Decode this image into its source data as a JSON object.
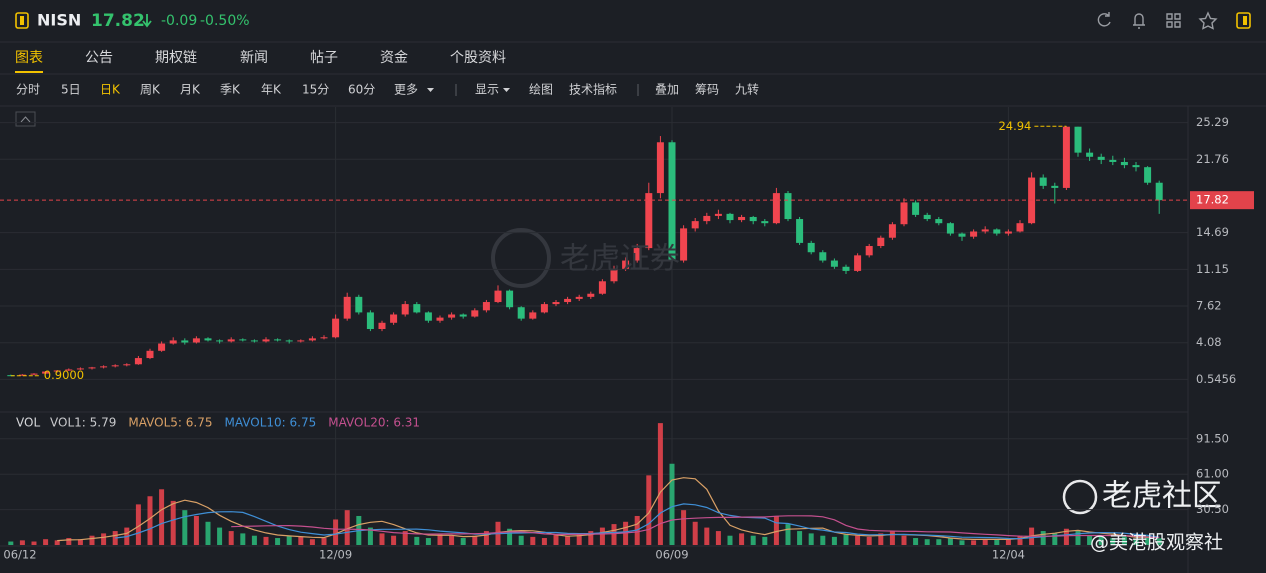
{
  "header": {
    "symbol": "NISN",
    "price": "17.82",
    "change": "-0.09",
    "change_pct": "-0.50%"
  },
  "tabs": [
    "图表",
    "公告",
    "期权链",
    "新闻",
    "帖子",
    "资金",
    "个股资料"
  ],
  "active_tab": 0,
  "periods": [
    "分时",
    "5日",
    "日K",
    "周K",
    "月K",
    "季K",
    "年K",
    "15分",
    "60分",
    "更多"
  ],
  "active_period": 2,
  "tools": [
    "显示",
    "绘图",
    "技术指标"
  ],
  "overlays": [
    "叠加",
    "筹码",
    "九转"
  ],
  "watermarks": [
    "老虎证券",
    "老虎社区",
    "@美港股观察社"
  ],
  "chart_data": [
    {
      "type": "candlestick",
      "up_color": "#f0454f",
      "down_color": "#2bbd7c",
      "xlim": [
        -0.5,
        99.5
      ],
      "xticks": [
        {
          "value": 0,
          "label": "06/12"
        },
        {
          "value": 28,
          "label": "12/09"
        },
        {
          "value": 57,
          "label": "06/09"
        },
        {
          "value": 86,
          "label": "12/04"
        }
      ],
      "ylim": [
        -2.6,
        26.8
      ],
      "yticks": [
        0.5456,
        4.08,
        7.62,
        11.15,
        14.69,
        21.76,
        25.29
      ],
      "grid": true,
      "last_price": 17.82,
      "high_label": 24.94,
      "low_label": {
        "value": 0.9,
        "label": "0.9000"
      },
      "candles": [
        [
          0.95,
          1.0,
          0.9,
          0.9
        ],
        [
          0.9,
          1.05,
          0.9,
          1.0
        ],
        [
          1.0,
          1.15,
          0.95,
          1.1
        ],
        [
          1.1,
          1.35,
          1.05,
          1.3
        ],
        [
          1.3,
          1.45,
          1.2,
          1.4
        ],
        [
          1.4,
          1.6,
          1.35,
          1.5
        ],
        [
          1.5,
          1.7,
          1.45,
          1.6
        ],
        [
          1.6,
          1.75,
          1.5,
          1.7
        ],
        [
          1.7,
          1.9,
          1.6,
          1.8
        ],
        [
          1.8,
          2.0,
          1.7,
          1.9
        ],
        [
          1.9,
          2.1,
          1.8,
          2.0
        ],
        [
          2.0,
          2.8,
          1.95,
          2.6
        ],
        [
          2.6,
          3.5,
          2.5,
          3.3
        ],
        [
          3.3,
          4.2,
          3.2,
          4.0
        ],
        [
          4.0,
          4.6,
          3.9,
          4.3
        ],
        [
          4.3,
          4.5,
          3.9,
          4.1
        ],
        [
          4.1,
          4.7,
          4.0,
          4.5
        ],
        [
          4.5,
          4.6,
          4.2,
          4.3
        ],
        [
          4.3,
          4.4,
          4.0,
          4.2
        ],
        [
          4.2,
          4.6,
          4.1,
          4.4
        ],
        [
          4.4,
          4.5,
          4.2,
          4.3
        ],
        [
          4.3,
          4.4,
          4.1,
          4.2
        ],
        [
          4.2,
          4.6,
          4.1,
          4.4
        ],
        [
          4.4,
          4.5,
          4.2,
          4.3
        ],
        [
          4.3,
          4.4,
          4.0,
          4.2
        ],
        [
          4.2,
          4.4,
          4.1,
          4.3
        ],
        [
          4.3,
          4.7,
          4.2,
          4.5
        ],
        [
          4.5,
          4.8,
          4.4,
          4.6
        ],
        [
          4.6,
          6.8,
          4.5,
          6.4
        ],
        [
          6.4,
          8.9,
          6.2,
          8.5
        ],
        [
          8.5,
          8.7,
          6.8,
          7.0
        ],
        [
          7.0,
          7.2,
          5.2,
          5.4
        ],
        [
          5.4,
          6.2,
          5.2,
          6.0
        ],
        [
          6.0,
          7.0,
          5.8,
          6.8
        ],
        [
          6.8,
          8.1,
          6.6,
          7.8
        ],
        [
          7.8,
          8.0,
          6.9,
          7.0
        ],
        [
          7.0,
          7.1,
          6.0,
          6.2
        ],
        [
          6.2,
          6.7,
          6.0,
          6.5
        ],
        [
          6.5,
          7.0,
          6.3,
          6.8
        ],
        [
          6.8,
          6.9,
          6.4,
          6.6
        ],
        [
          6.6,
          7.4,
          6.5,
          7.2
        ],
        [
          7.2,
          8.2,
          7.0,
          8.0
        ],
        [
          8.0,
          9.6,
          7.9,
          9.1
        ],
        [
          9.1,
          9.2,
          7.3,
          7.5
        ],
        [
          7.5,
          7.6,
          6.2,
          6.4
        ],
        [
          6.4,
          7.2,
          6.3,
          7.0
        ],
        [
          7.0,
          8.0,
          6.9,
          7.8
        ],
        [
          7.8,
          8.2,
          7.6,
          8.0
        ],
        [
          8.0,
          8.5,
          7.8,
          8.3
        ],
        [
          8.3,
          8.7,
          8.1,
          8.5
        ],
        [
          8.5,
          9.0,
          8.3,
          8.8
        ],
        [
          8.8,
          10.2,
          8.7,
          10.0
        ],
        [
          10.0,
          11.5,
          9.8,
          11.2
        ],
        [
          11.2,
          12.3,
          11.0,
          12.0
        ],
        [
          12.0,
          13.6,
          11.8,
          13.2
        ],
        [
          13.2,
          19.5,
          13.0,
          18.5
        ],
        [
          18.5,
          24.0,
          18.0,
          23.4
        ],
        [
          23.4,
          23.6,
          11.5,
          12.0
        ],
        [
          12.0,
          15.4,
          11.8,
          15.1
        ],
        [
          15.1,
          16.1,
          14.8,
          15.8
        ],
        [
          15.8,
          16.6,
          15.5,
          16.3
        ],
        [
          16.3,
          16.9,
          16.0,
          16.5
        ],
        [
          16.5,
          16.6,
          15.6,
          15.9
        ],
        [
          15.9,
          16.4,
          15.7,
          16.2
        ],
        [
          16.2,
          16.3,
          15.5,
          15.8
        ],
        [
          15.8,
          16.0,
          15.3,
          15.6
        ],
        [
          15.6,
          19.0,
          15.5,
          18.5
        ],
        [
          18.5,
          18.7,
          15.8,
          16.0
        ],
        [
          16.0,
          16.2,
          13.5,
          13.7
        ],
        [
          13.7,
          13.9,
          12.6,
          12.8
        ],
        [
          12.8,
          13.0,
          11.8,
          12.0
        ],
        [
          12.0,
          12.2,
          11.2,
          11.4
        ],
        [
          11.4,
          11.6,
          10.7,
          11.0
        ],
        [
          11.0,
          12.7,
          10.9,
          12.5
        ],
        [
          12.5,
          13.6,
          12.3,
          13.4
        ],
        [
          13.4,
          14.4,
          13.2,
          14.2
        ],
        [
          14.2,
          15.7,
          14.0,
          15.5
        ],
        [
          15.5,
          18.0,
          15.3,
          17.6
        ],
        [
          17.6,
          17.8,
          16.2,
          16.4
        ],
        [
          16.4,
          16.6,
          15.8,
          16.0
        ],
        [
          16.0,
          16.2,
          15.4,
          15.6
        ],
        [
          15.6,
          15.7,
          14.4,
          14.6
        ],
        [
          14.6,
          14.7,
          13.9,
          14.3
        ],
        [
          14.3,
          15.0,
          14.1,
          14.8
        ],
        [
          14.8,
          15.3,
          14.6,
          15.0
        ],
        [
          15.0,
          15.1,
          14.4,
          14.6
        ],
        [
          14.6,
          15.0,
          14.4,
          14.8
        ],
        [
          14.8,
          15.9,
          14.7,
          15.6
        ],
        [
          15.6,
          20.5,
          15.5,
          20.0
        ],
        [
          20.0,
          20.3,
          18.9,
          19.2
        ],
        [
          19.2,
          19.5,
          17.5,
          19.0
        ],
        [
          19.0,
          24.94,
          18.8,
          24.9
        ],
        [
          24.9,
          24.9,
          22.0,
          22.4
        ],
        [
          22.4,
          22.8,
          21.6,
          22.0
        ],
        [
          22.0,
          22.3,
          21.3,
          21.7
        ],
        [
          21.7,
          22.1,
          21.2,
          21.5
        ],
        [
          21.5,
          21.9,
          20.9,
          21.2
        ],
        [
          21.2,
          21.5,
          20.6,
          21.0
        ],
        [
          21.0,
          21.1,
          19.3,
          19.5
        ],
        [
          19.5,
          19.7,
          16.5,
          17.82
        ]
      ]
    },
    {
      "type": "bar",
      "title": "VOL",
      "ylim": [
        0,
        112
      ],
      "yticks": [
        {
          "value": 30.5,
          "label": "30.50"
        },
        {
          "value": 61,
          "label": "61.00"
        },
        {
          "value": 91.5,
          "label": "91.50"
        }
      ],
      "series": [
        {
          "name": "VOL1: 5.79",
          "color": "#c8c9cc",
          "values": [
            3,
            4,
            3,
            5,
            4,
            6,
            5,
            8,
            10,
            12,
            15,
            35,
            42,
            48,
            38,
            30,
            25,
            20,
            15,
            12,
            10,
            8,
            7,
            6,
            8,
            7,
            5,
            6,
            22,
            30,
            25,
            15,
            10,
            8,
            12,
            7,
            6,
            9,
            8,
            6,
            8,
            12,
            20,
            14,
            8,
            7,
            6,
            9,
            8,
            10,
            12,
            15,
            18,
            20,
            25,
            60,
            105,
            70,
            30,
            20,
            15,
            12,
            8,
            10,
            8,
            7,
            25,
            18,
            12,
            10,
            8,
            7,
            9,
            8,
            7,
            10,
            12,
            8,
            6,
            5,
            5,
            6,
            4,
            4,
            5,
            5,
            6,
            8,
            15,
            12,
            10,
            14,
            12,
            8,
            7,
            6,
            7,
            5,
            8,
            5.79
          ]
        },
        {
          "name": "MAVOL5: 6.75",
          "color": "#d9a066",
          "values": [
            null,
            null,
            null,
            null,
            3.8,
            4.4,
            4.6,
            5.6,
            6.6,
            8.2,
            10,
            16,
            22.8,
            30.4,
            35.6,
            38.6,
            36.6,
            32.2,
            25.6,
            20.4,
            16.4,
            13,
            10.4,
            8.6,
            7.8,
            7.2,
            6.6,
            6.4,
            9.6,
            14,
            17.6,
            19.6,
            20.4,
            17.6,
            14,
            10.4,
            8.6,
            8.4,
            8.4,
            7.2,
            7.4,
            8.6,
            10.8,
            12,
            12.4,
            12.2,
            11,
            8.8,
            7.6,
            8,
            9,
            10.8,
            12.6,
            15,
            18,
            27.6,
            45.6,
            56,
            58,
            57,
            48,
            29.4,
            17,
            13,
            10.6,
            9,
            11.6,
            13.6,
            14,
            14.4,
            14.6,
            11,
            9.2,
            8.4,
            7.8,
            8.2,
            9.2,
            9,
            8.6,
            8.2,
            7.2,
            6,
            5.2,
            4.8,
            4.8,
            4.8,
            4.8,
            5.6,
            7.8,
            9.2,
            10.2,
            11.8,
            12.6,
            11.2,
            10.2,
            9.4,
            8,
            6.6,
            6.6,
            6.75
          ]
        },
        {
          "name": "MAVOL10: 6.75",
          "color": "#3f8fd6",
          "values": [
            null,
            null,
            null,
            null,
            null,
            null,
            null,
            null,
            null,
            6.0,
            7.2,
            10.3,
            14,
            18.4,
            21.6,
            24.4,
            26.3,
            27.9,
            28.6,
            28.7,
            28.1,
            24.5,
            20.4,
            16.3,
            13.3,
            11,
            9.8,
            8.6,
            9.4,
            10.9,
            12.4,
            13.1,
            13.5,
            13.5,
            13.6,
            13.7,
            13.1,
            12,
            11.2,
            10.5,
            9.4,
            9.5,
            9.7,
            10.2,
            10.3,
            10.7,
            10.8,
            10.8,
            10,
            9.8,
            9.9,
            10.4,
            10.8,
            11.3,
            12.9,
            18.3,
            27.6,
            33,
            35.4,
            34.6,
            32.3,
            27.8,
            25.5,
            24,
            23.6,
            23.2,
            19,
            18.5,
            16.3,
            13.9,
            12.8,
            11.2,
            10.8,
            9.4,
            8.8,
            8.9,
            8.9,
            9.1,
            8.8,
            8.5,
            8.1,
            7.5,
            6.7,
            6.6,
            6.5,
            6.3,
            5.6,
            5.4,
            6.4,
            7.1,
            8,
            8.7,
            9.7,
            10.3,
            10.7,
            10.6,
            10.2,
            9.1,
            8.4,
            6.75
          ]
        },
        {
          "name": "MAVOL20: 6.31",
          "color": "#c4508f",
          "values": [
            null,
            null,
            null,
            null,
            null,
            null,
            null,
            null,
            null,
            null,
            null,
            null,
            null,
            null,
            null,
            null,
            null,
            null,
            null,
            15.8,
            16.1,
            16.3,
            16.5,
            16.6,
            16.7,
            16.3,
            15.5,
            14.4,
            13.7,
            13.6,
            13.4,
            12.9,
            11.8,
            10.7,
            10.1,
            9.6,
            9.4,
            9.5,
            9.6,
            9.6,
            9.7,
            10,
            10.7,
            11.3,
            11.3,
            10.6,
            9.6,
            9.1,
            9.1,
            9.2,
            9.3,
            9.5,
            9.8,
            10.4,
            11.3,
            13.4,
            18.4,
            21.5,
            22.6,
            23.1,
            23.5,
            23.8,
            23.8,
            24,
            24.1,
            24.1,
            24.8,
            25.2,
            25.2,
            25.1,
            24.3,
            21.7,
            16.9,
            13.8,
            12.7,
            12.2,
            12,
            11.8,
            11.7,
            11.4,
            11.3,
            11.2,
            10.4,
            9.8,
            9.2,
            8.7,
            8.1,
            7.7,
            7.5,
            7.6,
            7.7,
            8,
            8.2,
            8.2,
            8.2,
            8.2,
            8.2,
            7.5,
            6.9,
            6.31
          ]
        }
      ]
    }
  ]
}
